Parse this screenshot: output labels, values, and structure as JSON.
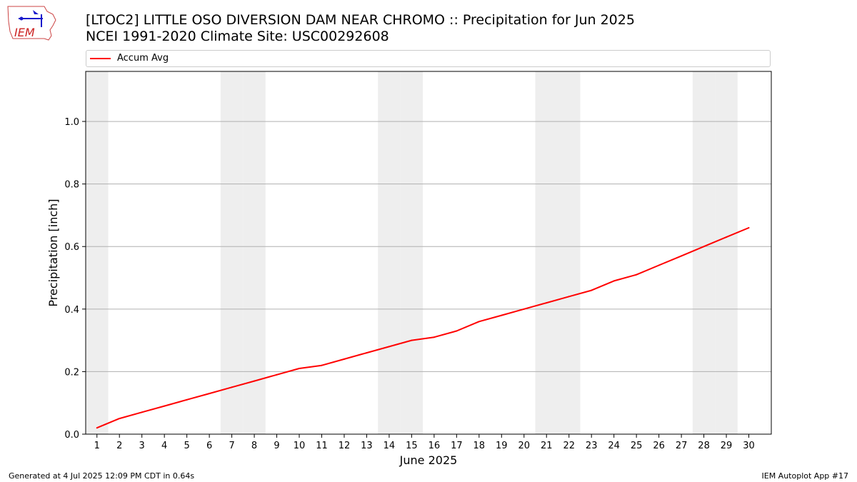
{
  "header": {
    "title_line1": "[LTOC2] LITTLE OSO DIVERSION DAM NEAR CHROMO :: Precipitation for Jun 2025",
    "title_line2": "NCEI 1991-2020 Climate Site: USC00292608",
    "logo_text": "IEM"
  },
  "footer": {
    "generated": "Generated at 4 Jul 2025 12:09 PM CDT in 0.64s",
    "app": "IEM Autoplot App #17"
  },
  "colors": {
    "line": "#ff0000",
    "weekend_band": "#eeeeee",
    "grid": "#b0b0b0"
  },
  "chart_data": {
    "type": "line",
    "title": "[LTOC2] LITTLE OSO DIVERSION DAM NEAR CHROMO :: Precipitation for Jun 2025",
    "subtitle": "NCEI 1991-2020 Climate Site: USC00292608",
    "xlabel": "June 2025",
    "ylabel": "Precipitation [inch]",
    "xlim": [
      0.5,
      31
    ],
    "ylim": [
      0,
      1.16
    ],
    "yticks": [
      "0.0",
      "0.2",
      "0.4",
      "0.6",
      "0.8",
      "1.0"
    ],
    "xticks": [
      "1",
      "2",
      "3",
      "4",
      "5",
      "6",
      "7",
      "8",
      "9",
      "10",
      "11",
      "12",
      "13",
      "14",
      "15",
      "16",
      "17",
      "18",
      "19",
      "20",
      "21",
      "22",
      "23",
      "24",
      "25",
      "26",
      "27",
      "28",
      "29",
      "30"
    ],
    "grid": "horizontal",
    "legend": "top",
    "weekend_days": [
      1,
      7,
      8,
      14,
      15,
      21,
      22,
      28,
      29
    ],
    "series": [
      {
        "name": "Accum Avg",
        "x": [
          1,
          2,
          3,
          4,
          5,
          6,
          7,
          8,
          9,
          10,
          11,
          12,
          13,
          14,
          15,
          16,
          17,
          18,
          19,
          20,
          21,
          22,
          23,
          24,
          25,
          26,
          27,
          28,
          29,
          30
        ],
        "values": [
          0.02,
          0.05,
          0.07,
          0.09,
          0.11,
          0.13,
          0.15,
          0.17,
          0.19,
          0.21,
          0.22,
          0.24,
          0.26,
          0.28,
          0.3,
          0.31,
          0.33,
          0.36,
          0.38,
          0.4,
          0.42,
          0.44,
          0.46,
          0.49,
          0.51,
          0.54,
          0.57,
          0.6,
          0.63,
          0.66
        ]
      }
    ]
  }
}
